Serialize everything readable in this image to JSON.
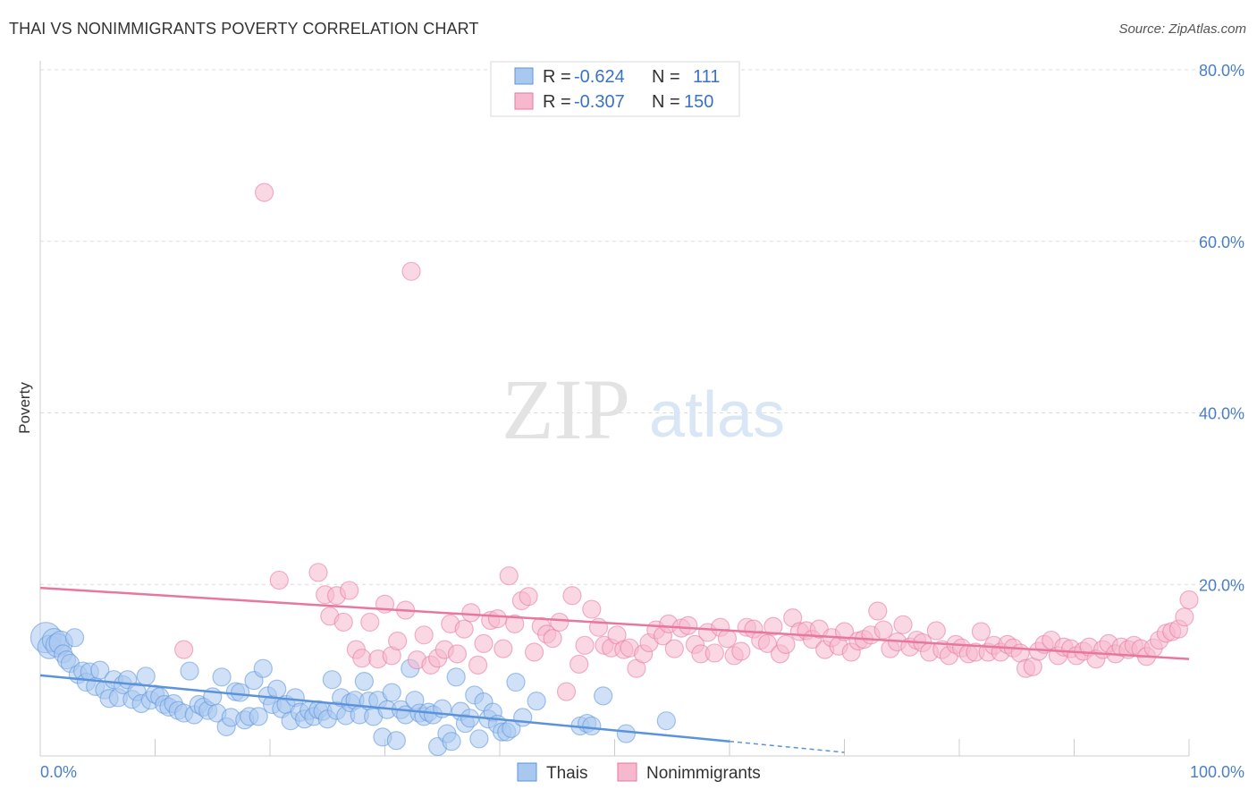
{
  "header": {
    "title": "THAI VS NONIMMIGRANTS POVERTY CORRELATION CHART",
    "source": "Source: ZipAtlas.com"
  },
  "watermark": {
    "zip": "ZIP",
    "atlas": "atlas"
  },
  "legend": {
    "r_label": "R =",
    "n_label": "N =",
    "rows": [
      {
        "r": "-0.624",
        "n": "111",
        "color": "#a9c8f0"
      },
      {
        "r": "-0.307",
        "n": "150",
        "color": "#f5b8cc"
      }
    ]
  },
  "bottom_legend": [
    "Thais",
    "Nonimmigrants"
  ],
  "chart_data": {
    "type": "scatter",
    "ylabel": "Poverty",
    "xlim": [
      0,
      100
    ],
    "ylim": [
      0,
      80
    ],
    "x_tick_labels": [
      "0.0%",
      "100.0%"
    ],
    "y_ticks": [
      {
        "value": 20,
        "label": "20.0%"
      },
      {
        "value": 40,
        "label": "40.0%"
      },
      {
        "value": 60,
        "label": "60.0%"
      },
      {
        "value": 80,
        "label": "80.0%"
      }
    ],
    "grid": true,
    "legend_position": "top-center",
    "series": [
      {
        "name": "Thais",
        "color": "#5b93db",
        "fill": "#a9c8f0",
        "trend": {
          "x0": 0,
          "y0": 9.4,
          "x1": 60,
          "y1": 1.7,
          "dash_to_x": 70
        },
        "points": [
          [
            0.5,
            13.8
          ],
          [
            0.8,
            12.7
          ],
          [
            1.2,
            13.5
          ],
          [
            1.5,
            12.9
          ],
          [
            1.8,
            13.2
          ],
          [
            2.0,
            11.9
          ],
          [
            2.3,
            11.2
          ],
          [
            2.6,
            10.8
          ],
          [
            3.0,
            13.8
          ],
          [
            3.3,
            9.5
          ],
          [
            3.7,
            9.9
          ],
          [
            4.0,
            8.6
          ],
          [
            4.3,
            9.8
          ],
          [
            4.8,
            8.1
          ],
          [
            5.2,
            10.0
          ],
          [
            5.6,
            7.7
          ],
          [
            6.0,
            6.7
          ],
          [
            6.4,
            8.9
          ],
          [
            6.8,
            6.8
          ],
          [
            7.2,
            8.3
          ],
          [
            7.6,
            8.9
          ],
          [
            8.0,
            6.6
          ],
          [
            8.4,
            7.5
          ],
          [
            8.8,
            6.1
          ],
          [
            9.2,
            9.3
          ],
          [
            9.6,
            6.5
          ],
          [
            10.0,
            7.2
          ],
          [
            10.4,
            6.9
          ],
          [
            10.8,
            6.0
          ],
          [
            11.2,
            5.7
          ],
          [
            11.6,
            6.1
          ],
          [
            12.0,
            5.3
          ],
          [
            12.5,
            5.0
          ],
          [
            13.0,
            9.9
          ],
          [
            13.4,
            4.8
          ],
          [
            13.8,
            6.0
          ],
          [
            14.2,
            5.7
          ],
          [
            14.6,
            5.3
          ],
          [
            15.0,
            6.9
          ],
          [
            15.4,
            5.0
          ],
          [
            15.8,
            9.2
          ],
          [
            16.2,
            3.4
          ],
          [
            16.6,
            4.5
          ],
          [
            17.0,
            7.5
          ],
          [
            17.4,
            7.4
          ],
          [
            17.8,
            4.2
          ],
          [
            18.2,
            4.6
          ],
          [
            18.6,
            8.8
          ],
          [
            19.0,
            4.6
          ],
          [
            19.4,
            10.2
          ],
          [
            19.8,
            7.0
          ],
          [
            20.2,
            6.0
          ],
          [
            20.6,
            7.8
          ],
          [
            21.0,
            5.5
          ],
          [
            21.4,
            6.0
          ],
          [
            21.8,
            4.1
          ],
          [
            22.2,
            6.8
          ],
          [
            22.6,
            5.1
          ],
          [
            23.0,
            4.3
          ],
          [
            23.4,
            5.3
          ],
          [
            23.8,
            4.6
          ],
          [
            24.2,
            5.4
          ],
          [
            24.6,
            5.2
          ],
          [
            25.0,
            4.3
          ],
          [
            25.4,
            8.9
          ],
          [
            25.8,
            5.3
          ],
          [
            26.2,
            6.8
          ],
          [
            26.6,
            4.7
          ],
          [
            27.0,
            6.2
          ],
          [
            27.4,
            6.5
          ],
          [
            27.8,
            4.8
          ],
          [
            28.2,
            8.7
          ],
          [
            28.6,
            6.4
          ],
          [
            29.0,
            4.6
          ],
          [
            29.4,
            6.5
          ],
          [
            29.8,
            2.2
          ],
          [
            30.2,
            5.4
          ],
          [
            30.6,
            7.4
          ],
          [
            31.0,
            1.8
          ],
          [
            31.4,
            5.4
          ],
          [
            31.8,
            4.8
          ],
          [
            32.2,
            10.2
          ],
          [
            32.6,
            6.5
          ],
          [
            33.0,
            5.0
          ],
          [
            33.4,
            4.6
          ],
          [
            33.8,
            5.1
          ],
          [
            34.2,
            4.8
          ],
          [
            34.6,
            1.1
          ],
          [
            35.0,
            5.5
          ],
          [
            35.4,
            2.6
          ],
          [
            35.8,
            1.7
          ],
          [
            36.2,
            9.2
          ],
          [
            36.6,
            5.2
          ],
          [
            37.0,
            3.8
          ],
          [
            37.4,
            4.4
          ],
          [
            37.8,
            7.1
          ],
          [
            38.2,
            2.0
          ],
          [
            38.6,
            6.3
          ],
          [
            39.0,
            4.3
          ],
          [
            39.4,
            5.1
          ],
          [
            39.8,
            3.7
          ],
          [
            40.2,
            2.8
          ],
          [
            40.6,
            2.8
          ],
          [
            41.0,
            3.2
          ],
          [
            41.4,
            8.6
          ],
          [
            42.0,
            4.5
          ],
          [
            43.2,
            6.4
          ],
          [
            47.0,
            3.5
          ],
          [
            47.6,
            3.8
          ],
          [
            48.0,
            3.5
          ],
          [
            49.0,
            7.0
          ],
          [
            51.0,
            2.6
          ],
          [
            54.5,
            4.1
          ]
        ]
      },
      {
        "name": "Nonimmigrants",
        "color": "#e8779c",
        "fill": "#f5b8cc",
        "trend": {
          "x0": 0,
          "y0": 19.6,
          "x1": 100,
          "y1": 11.3
        },
        "points": [
          [
            12.5,
            12.4
          ],
          [
            19.5,
            65.7
          ],
          [
            20.8,
            20.5
          ],
          [
            24.2,
            21.4
          ],
          [
            24.8,
            18.8
          ],
          [
            25.2,
            16.3
          ],
          [
            25.8,
            18.7
          ],
          [
            26.4,
            15.6
          ],
          [
            26.9,
            19.3
          ],
          [
            27.5,
            12.4
          ],
          [
            28.0,
            11.4
          ],
          [
            28.7,
            15.6
          ],
          [
            29.4,
            11.3
          ],
          [
            30.0,
            17.7
          ],
          [
            30.6,
            11.7
          ],
          [
            31.1,
            13.4
          ],
          [
            31.8,
            17.0
          ],
          [
            32.3,
            56.5
          ],
          [
            32.8,
            11.2
          ],
          [
            33.4,
            14.1
          ],
          [
            34.0,
            10.6
          ],
          [
            34.6,
            11.4
          ],
          [
            35.2,
            12.4
          ],
          [
            35.7,
            15.4
          ],
          [
            36.3,
            11.9
          ],
          [
            36.9,
            14.8
          ],
          [
            37.5,
            16.7
          ],
          [
            38.1,
            10.6
          ],
          [
            38.6,
            13.1
          ],
          [
            39.2,
            15.8
          ],
          [
            39.8,
            16.0
          ],
          [
            40.3,
            12.5
          ],
          [
            40.8,
            21.0
          ],
          [
            41.3,
            15.4
          ],
          [
            41.9,
            18.1
          ],
          [
            42.5,
            18.6
          ],
          [
            43.0,
            12.1
          ],
          [
            43.6,
            15.1
          ],
          [
            44.1,
            14.2
          ],
          [
            44.6,
            13.7
          ],
          [
            45.2,
            15.6
          ],
          [
            45.8,
            7.5
          ],
          [
            46.3,
            18.7
          ],
          [
            46.9,
            10.7
          ],
          [
            47.4,
            12.9
          ],
          [
            48.0,
            17.1
          ],
          [
            48.6,
            15.0
          ],
          [
            49.1,
            12.9
          ],
          [
            49.7,
            12.6
          ],
          [
            50.2,
            14.1
          ],
          [
            50.8,
            12.4
          ],
          [
            51.3,
            12.6
          ],
          [
            51.9,
            10.2
          ],
          [
            52.5,
            11.9
          ],
          [
            53.0,
            13.2
          ],
          [
            53.6,
            14.7
          ],
          [
            54.2,
            14.0
          ],
          [
            54.7,
            15.4
          ],
          [
            55.2,
            12.5
          ],
          [
            55.8,
            14.9
          ],
          [
            56.4,
            15.2
          ],
          [
            57.0,
            13.0
          ],
          [
            57.5,
            11.9
          ],
          [
            58.1,
            14.4
          ],
          [
            58.7,
            12.0
          ],
          [
            59.2,
            15.0
          ],
          [
            59.8,
            13.7
          ],
          [
            60.4,
            11.7
          ],
          [
            61.0,
            12.2
          ],
          [
            61.5,
            15.0
          ],
          [
            62.1,
            14.8
          ],
          [
            62.7,
            13.5
          ],
          [
            63.3,
            13.1
          ],
          [
            63.8,
            15.1
          ],
          [
            64.4,
            11.9
          ],
          [
            64.9,
            13.0
          ],
          [
            65.5,
            16.1
          ],
          [
            66.1,
            14.5
          ],
          [
            66.7,
            14.6
          ],
          [
            67.2,
            13.6
          ],
          [
            67.8,
            14.8
          ],
          [
            68.3,
            12.4
          ],
          [
            68.9,
            13.8
          ],
          [
            69.5,
            12.8
          ],
          [
            70.0,
            14.5
          ],
          [
            70.6,
            12.1
          ],
          [
            71.2,
            13.4
          ],
          [
            71.7,
            13.6
          ],
          [
            72.3,
            14.1
          ],
          [
            72.9,
            16.9
          ],
          [
            73.4,
            14.7
          ],
          [
            74.0,
            12.5
          ],
          [
            74.6,
            13.3
          ],
          [
            75.1,
            15.3
          ],
          [
            75.7,
            12.7
          ],
          [
            76.3,
            13.5
          ],
          [
            76.8,
            13.2
          ],
          [
            77.4,
            12.1
          ],
          [
            78.0,
            14.6
          ],
          [
            78.5,
            12.4
          ],
          [
            79.1,
            11.7
          ],
          [
            79.7,
            13.0
          ],
          [
            80.2,
            12.6
          ],
          [
            80.8,
            11.9
          ],
          [
            81.4,
            12.1
          ],
          [
            81.9,
            14.5
          ],
          [
            82.5,
            12.1
          ],
          [
            83.0,
            12.9
          ],
          [
            83.6,
            12.1
          ],
          [
            84.2,
            13.0
          ],
          [
            84.7,
            12.6
          ],
          [
            85.3,
            12.0
          ],
          [
            85.8,
            10.2
          ],
          [
            86.4,
            10.4
          ],
          [
            86.9,
            12.2
          ],
          [
            87.4,
            13.0
          ],
          [
            88.0,
            13.5
          ],
          [
            88.6,
            11.7
          ],
          [
            89.1,
            12.7
          ],
          [
            89.7,
            12.5
          ],
          [
            90.2,
            11.7
          ],
          [
            90.8,
            12.2
          ],
          [
            91.3,
            12.7
          ],
          [
            91.9,
            11.3
          ],
          [
            92.5,
            12.4
          ],
          [
            93.0,
            13.1
          ],
          [
            93.6,
            11.9
          ],
          [
            94.1,
            12.7
          ],
          [
            94.7,
            12.4
          ],
          [
            95.2,
            12.9
          ],
          [
            95.8,
            12.5
          ],
          [
            96.3,
            11.6
          ],
          [
            96.9,
            12.6
          ],
          [
            97.4,
            13.5
          ],
          [
            98.0,
            14.3
          ],
          [
            98.5,
            14.5
          ],
          [
            99.1,
            14.8
          ],
          [
            99.6,
            16.2
          ],
          [
            100.0,
            18.2
          ]
        ]
      }
    ]
  }
}
